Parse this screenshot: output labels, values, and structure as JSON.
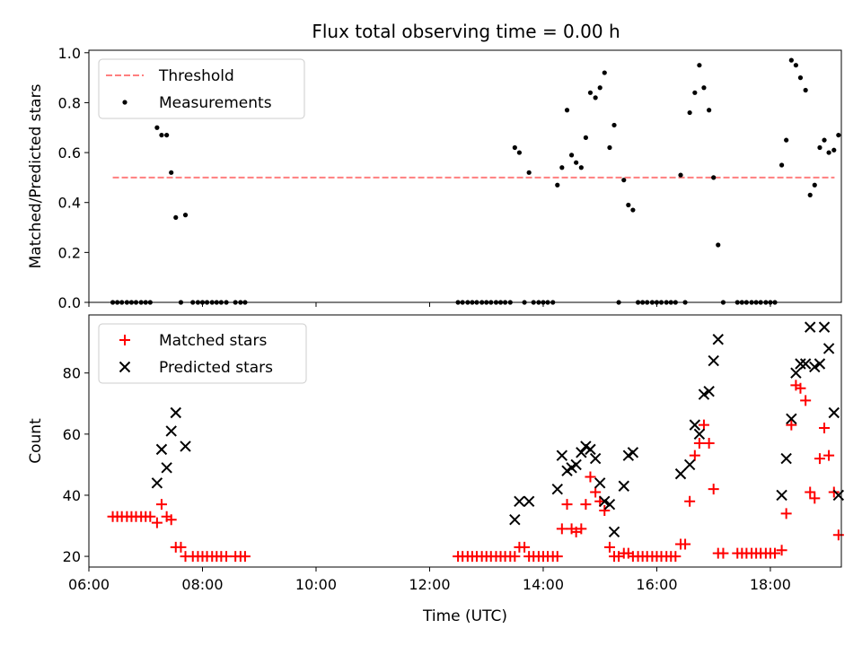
{
  "title": "Flux total observing time = 0.00 h",
  "chart_data": [
    {
      "type": "scatter",
      "ylabel": "Matched/Predicted stars",
      "xlabel": "",
      "xlim": [
        6.0,
        19.25
      ],
      "ylim": [
        0,
        1.01
      ],
      "yticks": [
        0.0,
        0.2,
        0.4,
        0.6,
        0.8,
        1.0
      ],
      "ytick_labels": [
        "0.0",
        "0.2",
        "0.4",
        "0.6",
        "0.8",
        "1.0"
      ],
      "xticks": [
        6,
        8,
        10,
        12,
        14,
        16,
        18
      ],
      "legend_position": "top-left",
      "legend": [
        {
          "label": "Threshold",
          "style": "dashed-line",
          "color": "#ff7f7f"
        },
        {
          "label": "Measurements",
          "style": "dot",
          "color": "#000000"
        }
      ],
      "threshold": {
        "y": 0.5,
        "x_range": [
          6.42,
          19.13
        ],
        "color": "#ff7f7f"
      },
      "series": [
        {
          "name": "Measurements",
          "color": "#000000",
          "points": [
            [
              6.42,
              0
            ],
            [
              6.5,
              0
            ],
            [
              6.58,
              0
            ],
            [
              6.67,
              0
            ],
            [
              6.75,
              0
            ],
            [
              6.83,
              0
            ],
            [
              6.92,
              0
            ],
            [
              7.0,
              0
            ],
            [
              7.08,
              0
            ],
            [
              7.2,
              0.7
            ],
            [
              7.28,
              0.67
            ],
            [
              7.37,
              0.67
            ],
            [
              7.45,
              0.52
            ],
            [
              7.53,
              0.34
            ],
            [
              7.62,
              0
            ],
            [
              7.7,
              0.35
            ],
            [
              7.83,
              0
            ],
            [
              7.92,
              0
            ],
            [
              8.0,
              0
            ],
            [
              8.08,
              0
            ],
            [
              8.17,
              0
            ],
            [
              8.25,
              0
            ],
            [
              8.33,
              0
            ],
            [
              8.42,
              0
            ],
            [
              8.58,
              0
            ],
            [
              8.67,
              0
            ],
            [
              8.75,
              0
            ],
            [
              12.5,
              0
            ],
            [
              12.58,
              0
            ],
            [
              12.67,
              0
            ],
            [
              12.75,
              0
            ],
            [
              12.83,
              0
            ],
            [
              12.92,
              0
            ],
            [
              13.0,
              0
            ],
            [
              13.08,
              0
            ],
            [
              13.17,
              0
            ],
            [
              13.25,
              0
            ],
            [
              13.33,
              0
            ],
            [
              13.42,
              0
            ],
            [
              13.5,
              0.62
            ],
            [
              13.58,
              0.6
            ],
            [
              13.67,
              0
            ],
            [
              13.75,
              0.52
            ],
            [
              13.83,
              0
            ],
            [
              13.92,
              0
            ],
            [
              14.0,
              0
            ],
            [
              14.08,
              0
            ],
            [
              14.17,
              0
            ],
            [
              14.25,
              0.47
            ],
            [
              14.33,
              0.54
            ],
            [
              14.42,
              0.77
            ],
            [
              14.5,
              0.59
            ],
            [
              14.58,
              0.56
            ],
            [
              14.67,
              0.54
            ],
            [
              14.75,
              0.66
            ],
            [
              14.83,
              0.84
            ],
            [
              14.92,
              0.82
            ],
            [
              15.0,
              0.86
            ],
            [
              15.08,
              0.92
            ],
            [
              15.17,
              0.62
            ],
            [
              15.25,
              0.71
            ],
            [
              15.33,
              0
            ],
            [
              15.42,
              0.49
            ],
            [
              15.5,
              0.39
            ],
            [
              15.58,
              0.37
            ],
            [
              15.67,
              0
            ],
            [
              15.75,
              0
            ],
            [
              15.83,
              0
            ],
            [
              15.92,
              0
            ],
            [
              16.0,
              0
            ],
            [
              16.08,
              0
            ],
            [
              16.17,
              0
            ],
            [
              16.25,
              0
            ],
            [
              16.33,
              0
            ],
            [
              16.42,
              0.51
            ],
            [
              16.5,
              0
            ],
            [
              16.58,
              0.76
            ],
            [
              16.67,
              0.84
            ],
            [
              16.75,
              0.95
            ],
            [
              16.83,
              0.86
            ],
            [
              16.92,
              0.77
            ],
            [
              17.0,
              0.5
            ],
            [
              17.08,
              0.23
            ],
            [
              17.17,
              0
            ],
            [
              17.42,
              0
            ],
            [
              17.5,
              0
            ],
            [
              17.58,
              0
            ],
            [
              17.67,
              0
            ],
            [
              17.75,
              0
            ],
            [
              17.83,
              0
            ],
            [
              17.92,
              0
            ],
            [
              18.0,
              0
            ],
            [
              18.08,
              0
            ],
            [
              18.2,
              0.55
            ],
            [
              18.28,
              0.65
            ],
            [
              18.37,
              0.97
            ],
            [
              18.45,
              0.95
            ],
            [
              18.53,
              0.9
            ],
            [
              18.62,
              0.85
            ],
            [
              18.7,
              0.43
            ],
            [
              18.78,
              0.47
            ],
            [
              18.87,
              0.62
            ],
            [
              18.95,
              0.65
            ],
            [
              19.03,
              0.6
            ],
            [
              19.12,
              0.61
            ],
            [
              19.2,
              0.67
            ]
          ]
        }
      ]
    },
    {
      "type": "scatter",
      "ylabel": "Count",
      "xlabel": "Time (UTC)",
      "xlim": [
        6.0,
        19.25
      ],
      "ylim": [
        16.5,
        99
      ],
      "yticks": [
        20,
        40,
        60,
        80
      ],
      "ytick_labels": [
        "20",
        "40",
        "60",
        "80"
      ],
      "xticks": [
        6,
        8,
        10,
        12,
        14,
        16,
        18
      ],
      "xtick_labels": [
        "06:00",
        "08:00",
        "10:00",
        "12:00",
        "14:00",
        "16:00",
        "18:00"
      ],
      "legend_position": "top-left",
      "legend": [
        {
          "label": "Matched stars",
          "style": "plus",
          "color": "#ff0000"
        },
        {
          "label": "Predicted stars",
          "style": "x",
          "color": "#000000"
        }
      ],
      "series": [
        {
          "name": "Matched stars",
          "color": "#ff0000",
          "marker": "plus",
          "points": [
            [
              6.42,
              33
            ],
            [
              6.5,
              33
            ],
            [
              6.58,
              33
            ],
            [
              6.67,
              33
            ],
            [
              6.75,
              33
            ],
            [
              6.83,
              33
            ],
            [
              6.92,
              33
            ],
            [
              7.0,
              33
            ],
            [
              7.08,
              33
            ],
            [
              7.2,
              31
            ],
            [
              7.28,
              37
            ],
            [
              7.37,
              33
            ],
            [
              7.45,
              32
            ],
            [
              7.53,
              23
            ],
            [
              7.62,
              23
            ],
            [
              7.7,
              20
            ],
            [
              7.83,
              20
            ],
            [
              7.92,
              20
            ],
            [
              8.0,
              20
            ],
            [
              8.08,
              20
            ],
            [
              8.17,
              20
            ],
            [
              8.25,
              20
            ],
            [
              8.33,
              20
            ],
            [
              8.42,
              20
            ],
            [
              8.58,
              20
            ],
            [
              8.67,
              20
            ],
            [
              8.75,
              20
            ],
            [
              12.5,
              20
            ],
            [
              12.58,
              20
            ],
            [
              12.67,
              20
            ],
            [
              12.75,
              20
            ],
            [
              12.83,
              20
            ],
            [
              12.92,
              20
            ],
            [
              13.0,
              20
            ],
            [
              13.08,
              20
            ],
            [
              13.17,
              20
            ],
            [
              13.25,
              20
            ],
            [
              13.33,
              20
            ],
            [
              13.42,
              20
            ],
            [
              13.5,
              20
            ],
            [
              13.58,
              23
            ],
            [
              13.67,
              23
            ],
            [
              13.75,
              20
            ],
            [
              13.83,
              20
            ],
            [
              13.92,
              20
            ],
            [
              14.0,
              20
            ],
            [
              14.08,
              20
            ],
            [
              14.17,
              20
            ],
            [
              14.25,
              20
            ],
            [
              14.33,
              29
            ],
            [
              14.42,
              37
            ],
            [
              14.5,
              29
            ],
            [
              14.58,
              28
            ],
            [
              14.67,
              29
            ],
            [
              14.75,
              37
            ],
            [
              14.83,
              46
            ],
            [
              14.92,
              41
            ],
            [
              15.0,
              38
            ],
            [
              15.08,
              35
            ],
            [
              15.17,
              23
            ],
            [
              15.25,
              20
            ],
            [
              15.33,
              20
            ],
            [
              15.42,
              21
            ],
            [
              15.5,
              21
            ],
            [
              15.58,
              20
            ],
            [
              15.67,
              20
            ],
            [
              15.75,
              20
            ],
            [
              15.83,
              20
            ],
            [
              15.92,
              20
            ],
            [
              16.0,
              20
            ],
            [
              16.08,
              20
            ],
            [
              16.17,
              20
            ],
            [
              16.25,
              20
            ],
            [
              16.33,
              20
            ],
            [
              16.42,
              24
            ],
            [
              16.5,
              24
            ],
            [
              16.58,
              38
            ],
            [
              16.67,
              53
            ],
            [
              16.75,
              57
            ],
            [
              16.83,
              63
            ],
            [
              16.92,
              57
            ],
            [
              17.0,
              42
            ],
            [
              17.08,
              21
            ],
            [
              17.17,
              21
            ],
            [
              17.42,
              21
            ],
            [
              17.5,
              21
            ],
            [
              17.58,
              21
            ],
            [
              17.67,
              21
            ],
            [
              17.75,
              21
            ],
            [
              17.83,
              21
            ],
            [
              17.92,
              21
            ],
            [
              18.0,
              21
            ],
            [
              18.08,
              21
            ],
            [
              18.2,
              22
            ],
            [
              18.28,
              34
            ],
            [
              18.37,
              63
            ],
            [
              18.45,
              76
            ],
            [
              18.53,
              75
            ],
            [
              18.62,
              71
            ],
            [
              18.7,
              41
            ],
            [
              18.78,
              39
            ],
            [
              18.87,
              52
            ],
            [
              18.95,
              62
            ],
            [
              19.03,
              53
            ],
            [
              19.12,
              41
            ],
            [
              19.2,
              27
            ]
          ]
        },
        {
          "name": "Predicted stars",
          "color": "#000000",
          "marker": "x",
          "points": [
            [
              7.2,
              44
            ],
            [
              7.28,
              55
            ],
            [
              7.37,
              49
            ],
            [
              7.45,
              61
            ],
            [
              7.53,
              67
            ],
            [
              7.7,
              56
            ],
            [
              13.5,
              32
            ],
            [
              13.58,
              38
            ],
            [
              13.75,
              38
            ],
            [
              14.25,
              42
            ],
            [
              14.33,
              53
            ],
            [
              14.42,
              48
            ],
            [
              14.5,
              49
            ],
            [
              14.58,
              50
            ],
            [
              14.67,
              54
            ],
            [
              14.75,
              56
            ],
            [
              14.83,
              55
            ],
            [
              14.92,
              52
            ],
            [
              15.0,
              44
            ],
            [
              15.08,
              38
            ],
            [
              15.17,
              37
            ],
            [
              15.25,
              28
            ],
            [
              15.42,
              43
            ],
            [
              15.5,
              53
            ],
            [
              15.58,
              54
            ],
            [
              16.42,
              47
            ],
            [
              16.58,
              50
            ],
            [
              16.67,
              63
            ],
            [
              16.75,
              60
            ],
            [
              16.83,
              73
            ],
            [
              16.92,
              74
            ],
            [
              17.0,
              84
            ],
            [
              17.08,
              91
            ],
            [
              18.2,
              40
            ],
            [
              18.28,
              52
            ],
            [
              18.37,
              65
            ],
            [
              18.45,
              80
            ],
            [
              18.53,
              83
            ],
            [
              18.62,
              83
            ],
            [
              18.7,
              95
            ],
            [
              18.78,
              82
            ],
            [
              18.87,
              83
            ],
            [
              18.95,
              95
            ],
            [
              19.03,
              88
            ],
            [
              19.12,
              67
            ],
            [
              19.2,
              40
            ]
          ]
        }
      ]
    }
  ]
}
